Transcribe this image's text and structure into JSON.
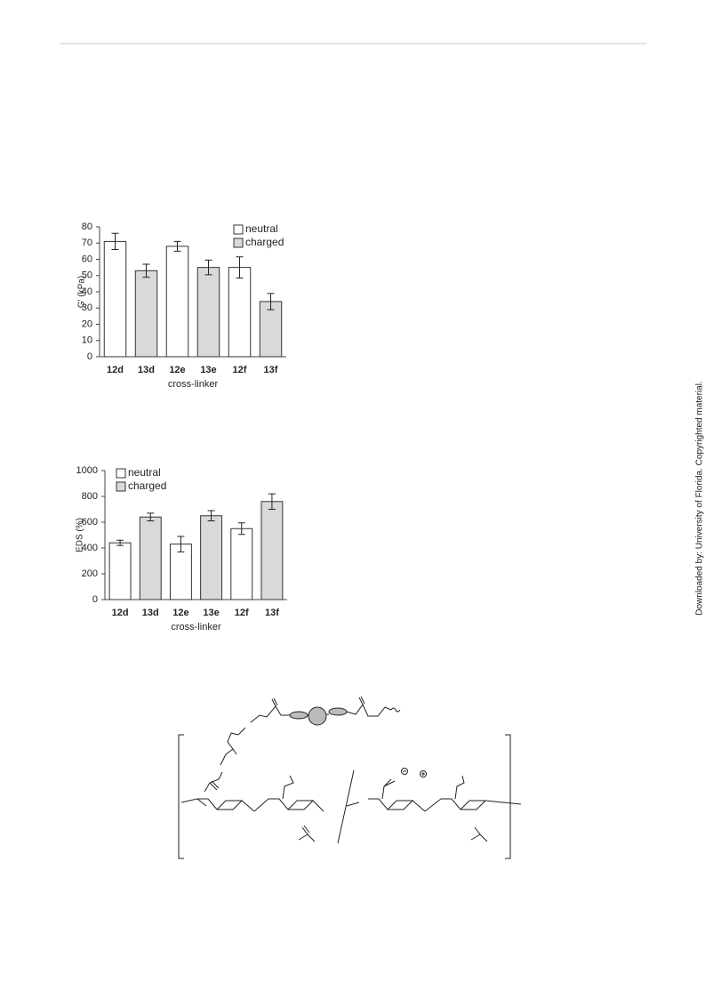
{
  "chart_data": [
    {
      "type": "bar",
      "y_label": "G' (kPa)",
      "x_label": "cross-linker",
      "categories": [
        "12d",
        "13d",
        "12e",
        "13e",
        "12f",
        "13f"
      ],
      "series": [
        {
          "name": "neutral",
          "color": "#ffffff",
          "values": [
            71,
            null,
            68,
            null,
            55,
            null
          ],
          "errors": [
            5,
            null,
            3,
            null,
            6.5,
            null
          ]
        },
        {
          "name": "charged",
          "color": "#d9d9d9",
          "values": [
            null,
            53,
            null,
            55,
            null,
            34
          ],
          "errors": [
            null,
            4,
            null,
            4.5,
            null,
            5
          ]
        }
      ],
      "ylim": [
        0,
        80
      ],
      "yticks": [
        0,
        10,
        20,
        30,
        40,
        50,
        60,
        70,
        80
      ],
      "legend": "upper right"
    },
    {
      "type": "bar",
      "y_label": "EDS (%)",
      "x_label": "cross-linker",
      "categories": [
        "12d",
        "13d",
        "12e",
        "13e",
        "12f",
        "13f"
      ],
      "series": [
        {
          "name": "neutral",
          "color": "#ffffff",
          "values": [
            440,
            null,
            430,
            null,
            550,
            null
          ],
          "errors": [
            20,
            null,
            60,
            null,
            45,
            null
          ]
        },
        {
          "name": "charged",
          "color": "#d9d9d9",
          "values": [
            null,
            640,
            null,
            650,
            null,
            760
          ],
          "errors": [
            null,
            30,
            null,
            40,
            null,
            60
          ]
        }
      ],
      "ylim": [
        0,
        1000
      ],
      "yticks": [
        0,
        200,
        400,
        600,
        800,
        1000
      ],
      "legend": "upper left"
    }
  ],
  "watermark": "Downloaded by: University of Florida. Copyrighted material."
}
